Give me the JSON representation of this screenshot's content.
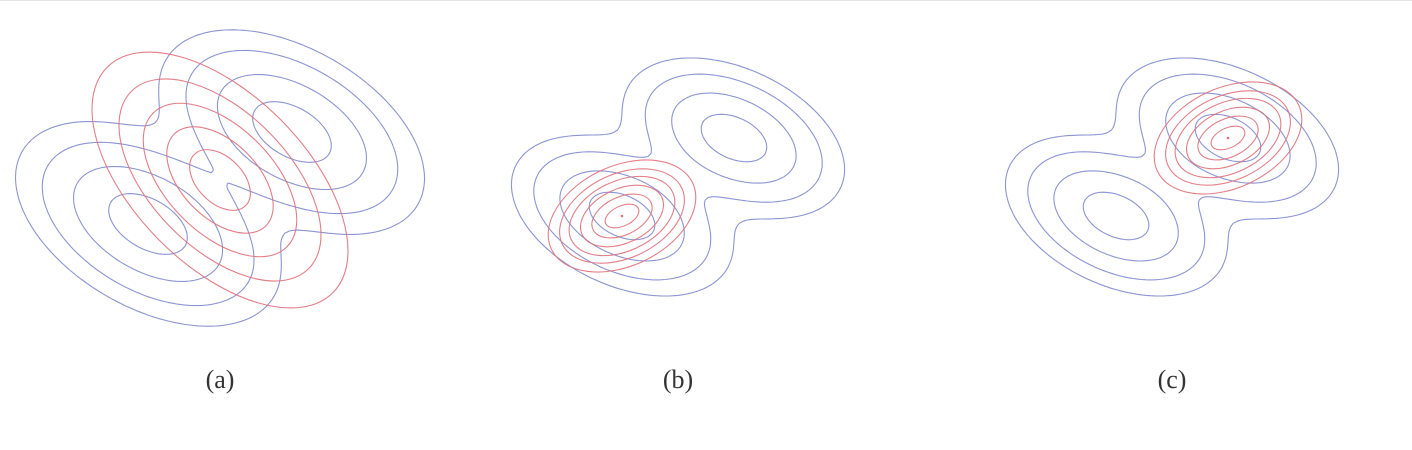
{
  "colors": {
    "target": "#e0707a",
    "model": "#8088cc",
    "background": "#ffffff"
  },
  "panels": [
    {
      "caption": "(a)",
      "target_center_marker": false,
      "target_contours": [
        {
          "cx": 0,
          "cy": 0,
          "rx": 45,
          "ry": 290,
          "angle_deg": -45
        },
        {
          "cx": 0,
          "cy": 0,
          "rx": 36,
          "ry": 228,
          "angle_deg": -45
        },
        {
          "cx": 0,
          "cy": 0,
          "rx": 28,
          "ry": 172,
          "angle_deg": -45
        },
        {
          "cx": 0,
          "cy": 0,
          "rx": 20,
          "ry": 118,
          "angle_deg": -45
        },
        {
          "cx": 0,
          "cy": 0,
          "rx": 12,
          "ry": 66,
          "angle_deg": -45
        }
      ],
      "model_modes": [
        {
          "cx": -1.8,
          "cy": -1.1,
          "rx": 4.2,
          "ry": 2.4,
          "angle_deg": -30
        },
        {
          "cx": 1.8,
          "cy": 1.2,
          "rx": 4.2,
          "ry": 2.4,
          "angle_deg": -30
        }
      ],
      "model_contour_levels": [
        0.08,
        0.2,
        0.45,
        0.8,
        1.3
      ]
    },
    {
      "caption": "(b)",
      "target_center_marker": true,
      "target_contours": [
        {
          "cx": -1.4,
          "cy": -0.9,
          "rx": 3.9,
          "ry": 2.5,
          "angle_deg": -25
        },
        {
          "cx": -1.4,
          "cy": -0.9,
          "rx": 3.3,
          "ry": 2.1,
          "angle_deg": -25
        },
        {
          "cx": -1.4,
          "cy": -0.9,
          "rx": 2.8,
          "ry": 1.75,
          "angle_deg": -25
        },
        {
          "cx": -1.4,
          "cy": -0.9,
          "rx": 2.2,
          "ry": 1.35,
          "angle_deg": -25
        },
        {
          "cx": -1.4,
          "cy": -0.9,
          "rx": 1.6,
          "ry": 0.95,
          "angle_deg": -25
        },
        {
          "cx": -1.4,
          "cy": -0.9,
          "rx": 0.9,
          "ry": 0.5,
          "angle_deg": -25
        }
      ],
      "model_modes": [
        {
          "cx": -1.4,
          "cy": -0.9,
          "rx": 3.4,
          "ry": 2.0,
          "angle_deg": -25
        },
        {
          "cx": 1.4,
          "cy": 1.05,
          "rx": 3.4,
          "ry": 2.0,
          "angle_deg": -25
        }
      ],
      "model_contour_levels": [
        0.08,
        0.2,
        0.45,
        0.8,
        1.25,
        1.7
      ]
    },
    {
      "caption": "(c)",
      "target_center_marker": true,
      "target_contours": [
        {
          "cx": 1.4,
          "cy": 1.05,
          "rx": 3.9,
          "ry": 2.5,
          "angle_deg": -25
        },
        {
          "cx": 1.4,
          "cy": 1.05,
          "rx": 3.3,
          "ry": 2.1,
          "angle_deg": -25
        },
        {
          "cx": 1.4,
          "cy": 1.05,
          "rx": 2.8,
          "ry": 1.75,
          "angle_deg": -25
        },
        {
          "cx": 1.4,
          "cy": 1.05,
          "rx": 2.2,
          "ry": 1.35,
          "angle_deg": -25
        },
        {
          "cx": 1.4,
          "cy": 1.05,
          "rx": 1.6,
          "ry": 0.95,
          "angle_deg": -25
        },
        {
          "cx": 1.4,
          "cy": 1.05,
          "rx": 0.9,
          "ry": 0.5,
          "angle_deg": -25
        }
      ],
      "model_modes": [
        {
          "cx": -1.4,
          "cy": -0.9,
          "rx": 3.4,
          "ry": 2.0,
          "angle_deg": -25
        },
        {
          "cx": 1.4,
          "cy": 1.05,
          "rx": 3.4,
          "ry": 2.0,
          "angle_deg": -25
        }
      ],
      "model_contour_levels": [
        0.08,
        0.2,
        0.45,
        0.8,
        1.25,
        1.7
      ]
    }
  ]
}
